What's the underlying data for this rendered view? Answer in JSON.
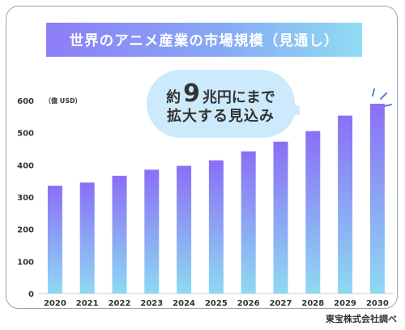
{
  "title": "世界のアニメ産業の市場規模（見通し）",
  "unit_label": "（億 USD）",
  "callout": {
    "prefix": "約",
    "number": "9",
    "suffix": "兆円にまで",
    "line2": "拡大する見込み"
  },
  "source": "東宝株式会社調べ",
  "colors": {
    "bar_top": "#8a6ff6",
    "bar_bottom": "#8ed9f2",
    "bubble_fill": "#cdeafc",
    "banner_left": "#8d7df7",
    "banner_right": "#8fdcf3",
    "accent_lines": "#5a7fd6"
  },
  "chart_data": {
    "type": "bar",
    "categories": [
      "2020",
      "2021",
      "2022",
      "2023",
      "2024",
      "2025",
      "2026",
      "2027",
      "2028",
      "2029",
      "2030"
    ],
    "values": [
      335,
      345,
      366,
      385,
      397,
      414,
      442,
      472,
      505,
      553,
      590
    ],
    "title": "世界のアニメ産業の市場規模（見通し）",
    "ylabel": "（億 USD）",
    "ylim": [
      0,
      600
    ],
    "yticks": [
      0,
      100,
      200,
      300,
      400,
      500,
      600
    ],
    "grid": false
  }
}
